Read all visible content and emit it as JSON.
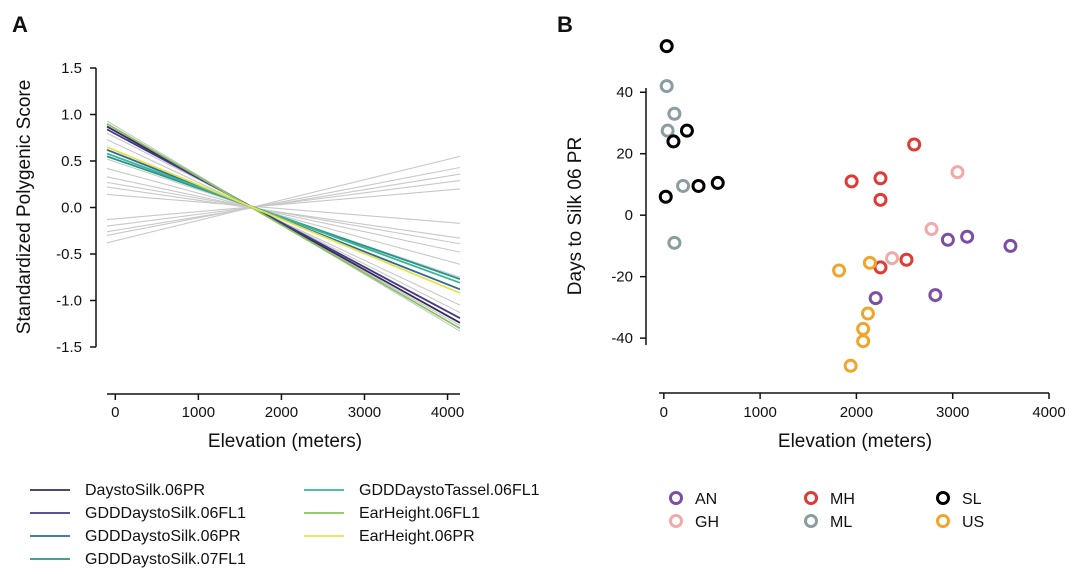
{
  "chart_data": [
    {
      "panel": "A",
      "type": "line",
      "xlabel": "Elevation (meters)",
      "ylabel": "Standardized Polygenic Score",
      "xlim": [
        -100,
        4150
      ],
      "ylim": [
        -1.5,
        1.5
      ],
      "xticks": [
        "0",
        "1000",
        "2000",
        "3000",
        "4000"
      ],
      "yticks": [
        "1.5",
        "1.0",
        "0.5",
        "0.0",
        "-0.5",
        "-1.0",
        "-1.5"
      ],
      "background_lines": {
        "color": "#c8c8c8",
        "lines": [
          {
            "x": [
              -100,
              4150
            ],
            "y": [
              0.93,
              -1.33
            ]
          },
          {
            "x": [
              -100,
              4150
            ],
            "y": [
              0.88,
              -1.27
            ]
          },
          {
            "x": [
              -100,
              4150
            ],
            "y": [
              0.8,
              -1.13
            ]
          },
          {
            "x": [
              -100,
              4150
            ],
            "y": [
              0.73,
              -1.05
            ]
          },
          {
            "x": [
              -100,
              4150
            ],
            "y": [
              0.62,
              -0.88
            ]
          },
          {
            "x": [
              -100,
              4150
            ],
            "y": [
              0.52,
              -0.75
            ]
          },
          {
            "x": [
              -100,
              4150
            ],
            "y": [
              0.42,
              -0.61
            ]
          },
          {
            "x": [
              -100,
              4150
            ],
            "y": [
              0.33,
              -0.48
            ]
          },
          {
            "x": [
              -100,
              4150
            ],
            "y": [
              0.27,
              -0.39
            ]
          },
          {
            "x": [
              -100,
              4150
            ],
            "y": [
              0.22,
              -0.33
            ]
          },
          {
            "x": [
              -100,
              4150
            ],
            "y": [
              0.14,
              -0.17
            ]
          },
          {
            "x": [
              -100,
              4150
            ],
            "y": [
              -0.13,
              0.2
            ]
          },
          {
            "x": [
              -100,
              4150
            ],
            "y": [
              -0.2,
              0.29
            ]
          },
          {
            "x": [
              -100,
              4150
            ],
            "y": [
              -0.26,
              0.36
            ]
          },
          {
            "x": [
              -100,
              4150
            ],
            "y": [
              -0.3,
              0.43
            ]
          },
          {
            "x": [
              -100,
              4150
            ],
            "y": [
              -0.38,
              0.55
            ]
          }
        ]
      },
      "series": [
        {
          "name": "DaystoSilk.06PR",
          "color": "#3b2a5c",
          "x": [
            -100,
            4150
          ],
          "y": [
            0.87,
            -1.24
          ]
        },
        {
          "name": "GDDDaystoSilk.06FL1",
          "color": "#443a8c",
          "x": [
            -100,
            4150
          ],
          "y": [
            0.84,
            -1.19
          ]
        },
        {
          "name": "GDDDaystoSilk.06PR",
          "color": "#2f6a9a",
          "x": [
            -100,
            4150
          ],
          "y": [
            0.62,
            -0.88
          ]
        },
        {
          "name": "GDDDaystoSilk.07FL1",
          "color": "#27958a",
          "x": [
            -100,
            4150
          ],
          "y": [
            0.55,
            -0.77
          ]
        },
        {
          "name": "GDDDaystoTassel.06FL1",
          "color": "#3ab495",
          "x": [
            -100,
            4150
          ],
          "y": [
            0.58,
            -0.81
          ]
        },
        {
          "name": "EarHeight.06FL1",
          "color": "#86c45f",
          "x": [
            -100,
            4150
          ],
          "y": [
            0.9,
            -1.3
          ]
        },
        {
          "name": "EarHeight.06PR",
          "color": "#e8e24a",
          "x": [
            -100,
            4150
          ],
          "y": [
            0.65,
            -0.92
          ]
        }
      ]
    },
    {
      "panel": "B",
      "type": "scatter",
      "xlabel": "Elevation (meters)",
      "ylabel": "Days to Silk 06 PR",
      "xlim": [
        -50,
        4000
      ],
      "ylim": [
        -52,
        57
      ],
      "xticks": [
        "0",
        "1000",
        "2000",
        "3000",
        "4000"
      ],
      "yticks": [
        "40",
        "20",
        "0",
        "-20",
        "-40"
      ],
      "series": [
        {
          "name": "AN",
          "color": "#7b4fa6",
          "points": [
            [
              2950,
              -8
            ],
            [
              3150,
              -7
            ],
            [
              3600,
              -10
            ],
            [
              2200,
              -27
            ],
            [
              2820,
              -26
            ]
          ]
        },
        {
          "name": "GH",
          "color": "#f2a9a9",
          "points": [
            [
              3050,
              14
            ],
            [
              2780,
              -4.5
            ],
            [
              2370,
              -14
            ]
          ]
        },
        {
          "name": "MH",
          "color": "#e03a35",
          "points": [
            [
              2600,
              23
            ],
            [
              1950,
              11
            ],
            [
              2250,
              12
            ],
            [
              2250,
              5
            ],
            [
              2520,
              -14.5
            ],
            [
              2250,
              -17
            ]
          ]
        },
        {
          "name": "ML",
          "color": "#8a9da3",
          "points": [
            [
              30,
              42
            ],
            [
              110,
              33
            ],
            [
              40,
              27.5
            ],
            [
              200,
              9.5
            ],
            [
              110,
              -9
            ]
          ]
        },
        {
          "name": "SL",
          "color": "#000000",
          "points": [
            [
              30,
              55
            ],
            [
              240,
              27.5
            ],
            [
              100,
              24
            ],
            [
              560,
              10.5
            ],
            [
              360,
              9.5
            ],
            [
              20,
              6
            ]
          ]
        },
        {
          "name": "US",
          "color": "#f0a52c",
          "points": [
            [
              1820,
              -18
            ],
            [
              2140,
              -15.5
            ],
            [
              2120,
              -32
            ],
            [
              2070,
              -37
            ],
            [
              2070,
              -41
            ],
            [
              1940,
              -49
            ]
          ]
        }
      ]
    }
  ]
}
